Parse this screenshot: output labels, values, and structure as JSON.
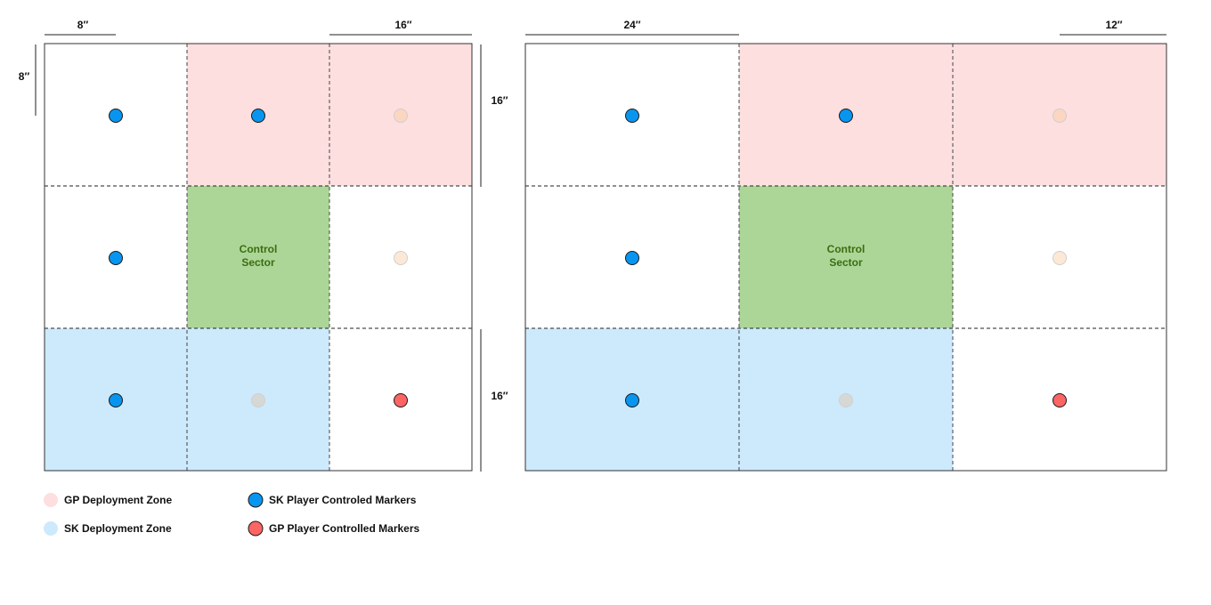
{
  "colors": {
    "gp_zone": "#fddfe0",
    "sk_zone": "#cde9fc",
    "control": "#acd698",
    "sk_marker": "#0895f0",
    "gp_marker": "#fd6565",
    "faded_peach": "#fbd6c0",
    "faded_light_peach": "#fde8d6",
    "faded_gray": "#d6d8d6"
  },
  "control_sector": {
    "line1": "Control",
    "line2": "Sector"
  },
  "boards": [
    {
      "dims": {
        "top_left": "8″",
        "top_right": "16″",
        "side_top": "8″"
      },
      "cells": [
        [
          "none",
          "gp",
          "gp"
        ],
        [
          "none",
          "control",
          "none"
        ],
        [
          "sk",
          "sk",
          "none"
        ]
      ],
      "markers": [
        [
          "sk",
          "sk",
          "faded_peach"
        ],
        [
          "sk",
          "",
          "faded_light_peach"
        ],
        [
          "sk",
          "faded_gray",
          "gp"
        ]
      ]
    },
    {
      "dims": {
        "top_left": "24″",
        "top_right": "12″",
        "side_top": "16″",
        "side_bottom": "16″"
      },
      "cells": [
        [
          "none",
          "gp",
          "gp"
        ],
        [
          "none",
          "control",
          "none"
        ],
        [
          "sk",
          "sk",
          "none"
        ]
      ],
      "markers": [
        [
          "sk",
          "sk",
          "faded_peach"
        ],
        [
          "sk",
          "",
          "faded_light_peach"
        ],
        [
          "sk",
          "faded_gray",
          "gp"
        ]
      ]
    }
  ],
  "legend": [
    {
      "label": "GP Deployment Zone",
      "swatch": "gp_zone"
    },
    {
      "label": "SK Deployment Zone",
      "swatch": "sk_zone"
    },
    {
      "label": "SK Player Controled Markers",
      "swatch": "sk_marker"
    },
    {
      "label": "GP Player Controlled Markers",
      "swatch": "gp_marker"
    }
  ]
}
